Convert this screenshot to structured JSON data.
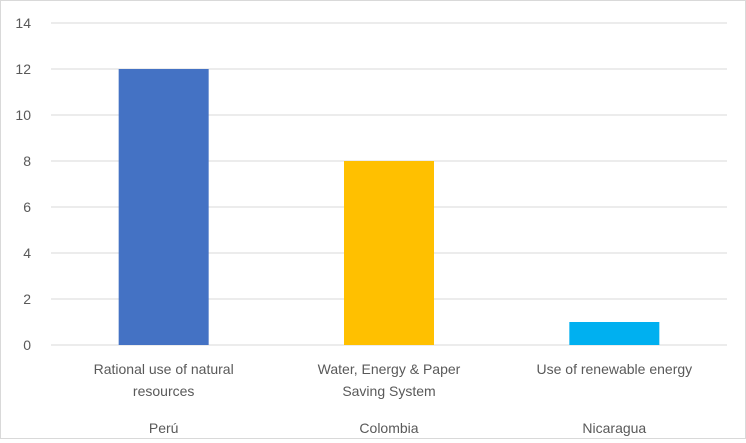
{
  "chart_data": {
    "type": "bar",
    "title": "",
    "xlabel": "",
    "ylabel": "",
    "ylim": [
      0,
      14
    ],
    "ytick_values": [
      0,
      2,
      4,
      6,
      8,
      10,
      12,
      14
    ],
    "ytick_labels": [
      "0",
      "2",
      "4",
      "6",
      "8",
      "10",
      "12",
      "14"
    ],
    "grid": true,
    "legend": "none",
    "categories": [
      {
        "label_lines": [
          "Rational use of natural",
          "resources"
        ],
        "group": "Perú",
        "value": 12,
        "color": "#4472C4"
      },
      {
        "label_lines": [
          "Water, Energy & Paper",
          "Saving System"
        ],
        "group": "Colombia",
        "value": 8,
        "color": "#FFC000"
      },
      {
        "label_lines": [
          "Use of renewable energy"
        ],
        "group": "Nicaragua",
        "value": 1,
        "color": "#00B0F0"
      }
    ]
  }
}
